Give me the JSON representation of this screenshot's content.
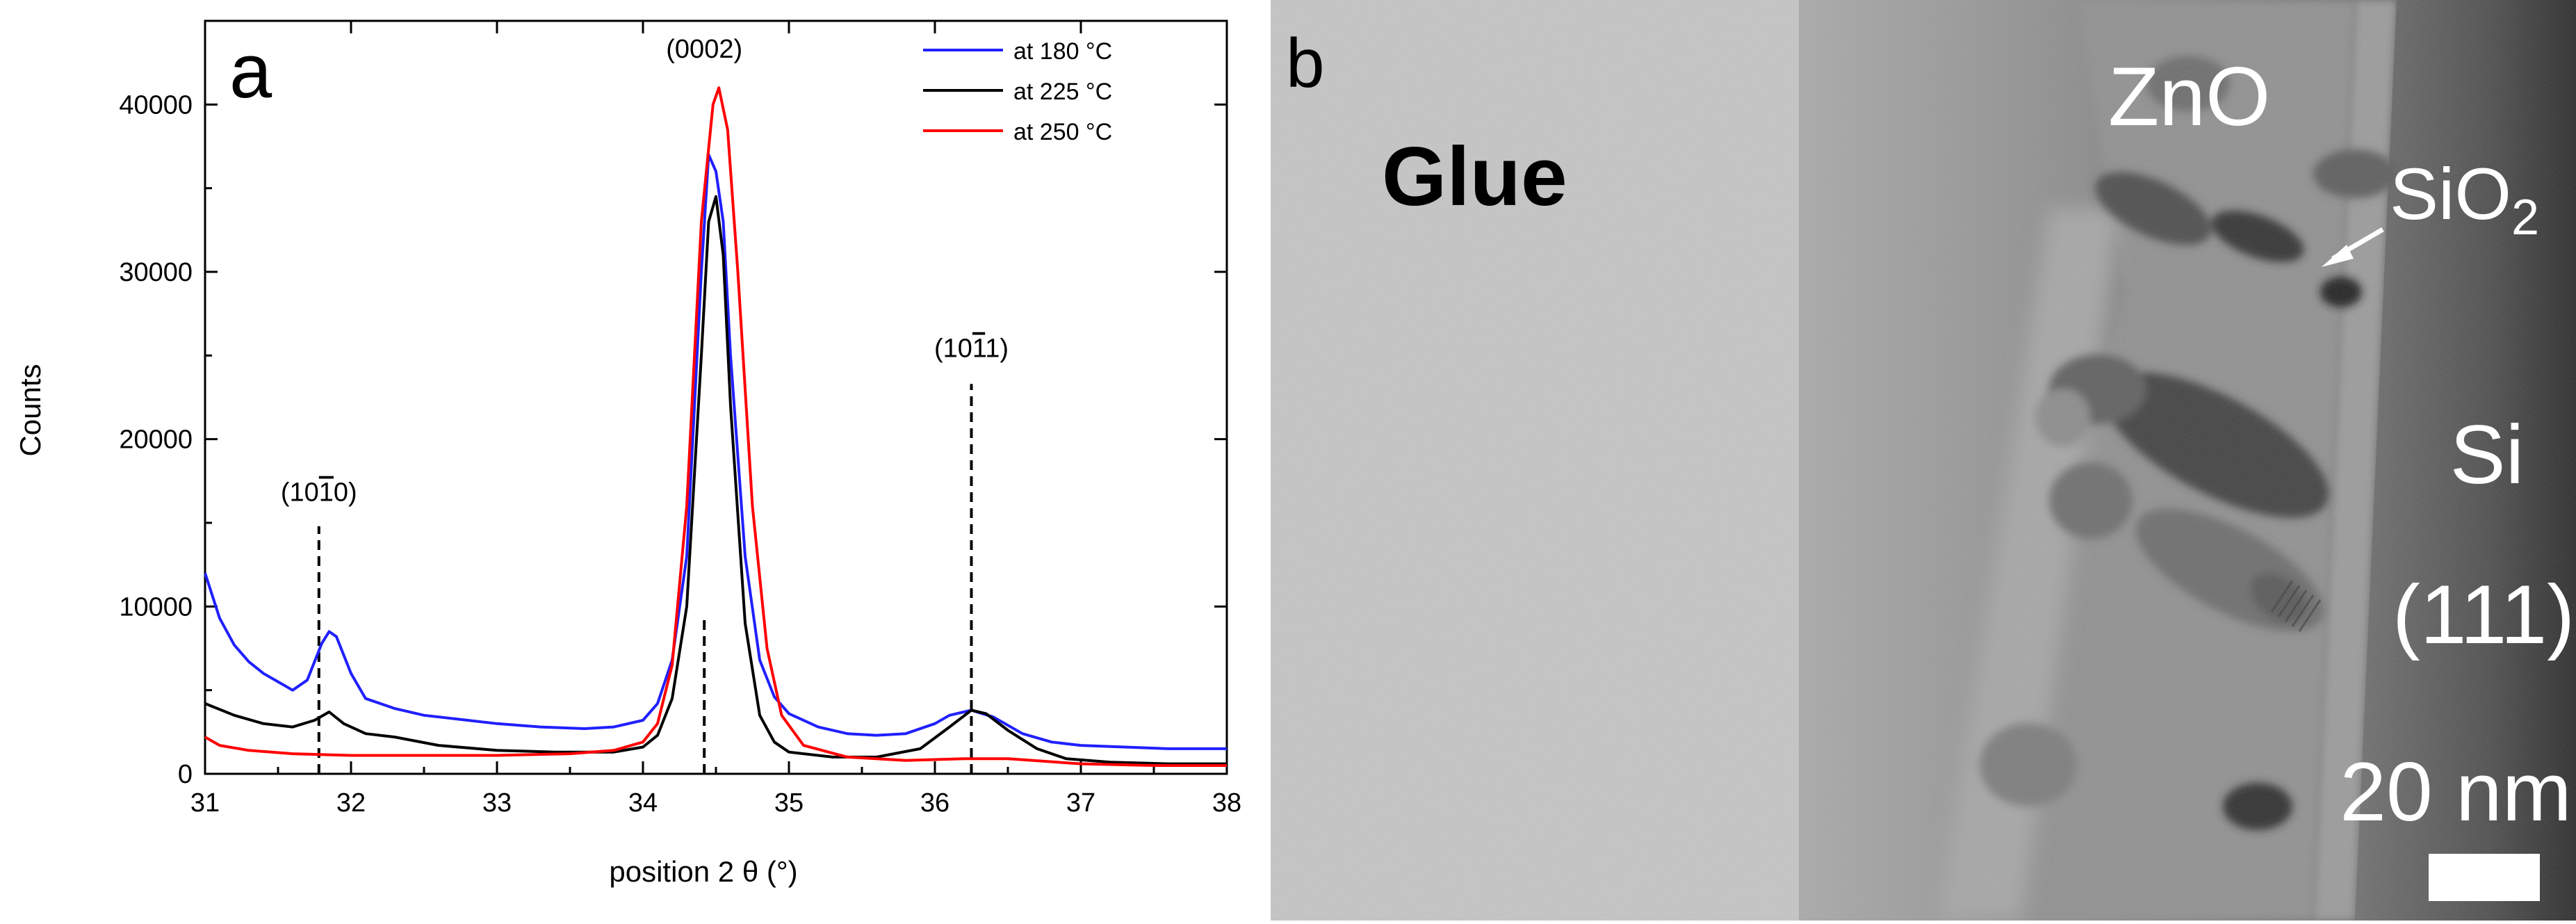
{
  "figure": {
    "panel_a_label": "a",
    "panel_b_label": "b"
  },
  "chart_data": {
    "type": "line",
    "xlabel": "position 2 θ (°)",
    "ylabel": "Counts",
    "xlim": [
      31,
      38
    ],
    "ylim": [
      0,
      45000
    ],
    "x_ticks": [
      31,
      32,
      33,
      34,
      35,
      36,
      37,
      38
    ],
    "y_ticks": [
      0,
      10000,
      20000,
      30000,
      40000
    ],
    "legend_position": "top-right",
    "series": [
      {
        "name": "at 180 °C",
        "color": "#2020ff",
        "points": [
          [
            31.0,
            12000
          ],
          [
            31.1,
            9300
          ],
          [
            31.2,
            7700
          ],
          [
            31.3,
            6700
          ],
          [
            31.4,
            6000
          ],
          [
            31.5,
            5500
          ],
          [
            31.6,
            5000
          ],
          [
            31.7,
            5600
          ],
          [
            31.8,
            7800
          ],
          [
            31.85,
            8500
          ],
          [
            31.9,
            8200
          ],
          [
            32.0,
            6000
          ],
          [
            32.1,
            4500
          ],
          [
            32.3,
            3900
          ],
          [
            32.5,
            3500
          ],
          [
            32.8,
            3200
          ],
          [
            33.0,
            3000
          ],
          [
            33.3,
            2800
          ],
          [
            33.6,
            2700
          ],
          [
            33.8,
            2800
          ],
          [
            34.0,
            3200
          ],
          [
            34.1,
            4200
          ],
          [
            34.2,
            6800
          ],
          [
            34.3,
            13000
          ],
          [
            34.4,
            30000
          ],
          [
            34.45,
            37000
          ],
          [
            34.5,
            36000
          ],
          [
            34.55,
            33000
          ],
          [
            34.6,
            25000
          ],
          [
            34.7,
            13000
          ],
          [
            34.8,
            6800
          ],
          [
            34.9,
            4600
          ],
          [
            35.0,
            3600
          ],
          [
            35.2,
            2800
          ],
          [
            35.4,
            2400
          ],
          [
            35.6,
            2300
          ],
          [
            35.8,
            2400
          ],
          [
            36.0,
            3000
          ],
          [
            36.1,
            3500
          ],
          [
            36.25,
            3800
          ],
          [
            36.4,
            3400
          ],
          [
            36.6,
            2400
          ],
          [
            36.8,
            1900
          ],
          [
            37.0,
            1700
          ],
          [
            37.3,
            1600
          ],
          [
            37.6,
            1500
          ],
          [
            38.0,
            1500
          ]
        ]
      },
      {
        "name": "at 225 °C",
        "color": "#000000",
        "points": [
          [
            31.0,
            4200
          ],
          [
            31.2,
            3500
          ],
          [
            31.4,
            3000
          ],
          [
            31.6,
            2800
          ],
          [
            31.75,
            3200
          ],
          [
            31.85,
            3700
          ],
          [
            31.95,
            3000
          ],
          [
            32.1,
            2400
          ],
          [
            32.3,
            2200
          ],
          [
            32.6,
            1700
          ],
          [
            33.0,
            1400
          ],
          [
            33.4,
            1300
          ],
          [
            33.8,
            1300
          ],
          [
            34.0,
            1600
          ],
          [
            34.1,
            2300
          ],
          [
            34.2,
            4500
          ],
          [
            34.3,
            10000
          ],
          [
            34.4,
            25000
          ],
          [
            34.45,
            33000
          ],
          [
            34.5,
            34500
          ],
          [
            34.55,
            31000
          ],
          [
            34.6,
            22000
          ],
          [
            34.7,
            9000
          ],
          [
            34.8,
            3500
          ],
          [
            34.9,
            1900
          ],
          [
            35.0,
            1300
          ],
          [
            35.3,
            1000
          ],
          [
            35.6,
            1000
          ],
          [
            35.9,
            1500
          ],
          [
            36.1,
            2800
          ],
          [
            36.25,
            3800
          ],
          [
            36.35,
            3600
          ],
          [
            36.5,
            2600
          ],
          [
            36.7,
            1500
          ],
          [
            36.9,
            900
          ],
          [
            37.2,
            700
          ],
          [
            37.6,
            600
          ],
          [
            38.0,
            600
          ]
        ]
      },
      {
        "name": "at 250 °C",
        "color": "#ff0000",
        "points": [
          [
            31.0,
            2200
          ],
          [
            31.1,
            1700
          ],
          [
            31.3,
            1400
          ],
          [
            31.6,
            1200
          ],
          [
            32.0,
            1100
          ],
          [
            32.5,
            1100
          ],
          [
            33.0,
            1100
          ],
          [
            33.5,
            1200
          ],
          [
            33.8,
            1400
          ],
          [
            34.0,
            1900
          ],
          [
            34.1,
            3000
          ],
          [
            34.2,
            6500
          ],
          [
            34.3,
            16000
          ],
          [
            34.4,
            33000
          ],
          [
            34.48,
            40000
          ],
          [
            34.52,
            41000
          ],
          [
            34.58,
            38500
          ],
          [
            34.65,
            30000
          ],
          [
            34.75,
            16000
          ],
          [
            34.85,
            7500
          ],
          [
            34.95,
            3500
          ],
          [
            35.1,
            1700
          ],
          [
            35.4,
            1000
          ],
          [
            35.8,
            800
          ],
          [
            36.2,
            900
          ],
          [
            36.5,
            900
          ],
          [
            37.0,
            600
          ],
          [
            37.5,
            500
          ],
          [
            38.0,
            500
          ]
        ]
      }
    ],
    "annotations": [
      {
        "label": "(10",
        "overbar": "1",
        "tail": "0)",
        "x": 31.78,
        "label_y": 16300,
        "line_top": 14800
      },
      {
        "label": "(0002)",
        "overbar": "",
        "tail": "",
        "x": 34.42,
        "label_y": 42800,
        "line_top": 9500
      },
      {
        "label": "(10",
        "overbar": "1",
        "tail": "1)",
        "x": 36.25,
        "label_y": 24900,
        "line_top": 23300
      }
    ]
  },
  "micrograph": {
    "labels": {
      "glue": "Glue",
      "zno": "ZnO",
      "sio2_base": "SiO",
      "sio2_sub": "2",
      "si": "Si",
      "si_orientation": "(111)",
      "scale_bar": "20 nm"
    }
  }
}
